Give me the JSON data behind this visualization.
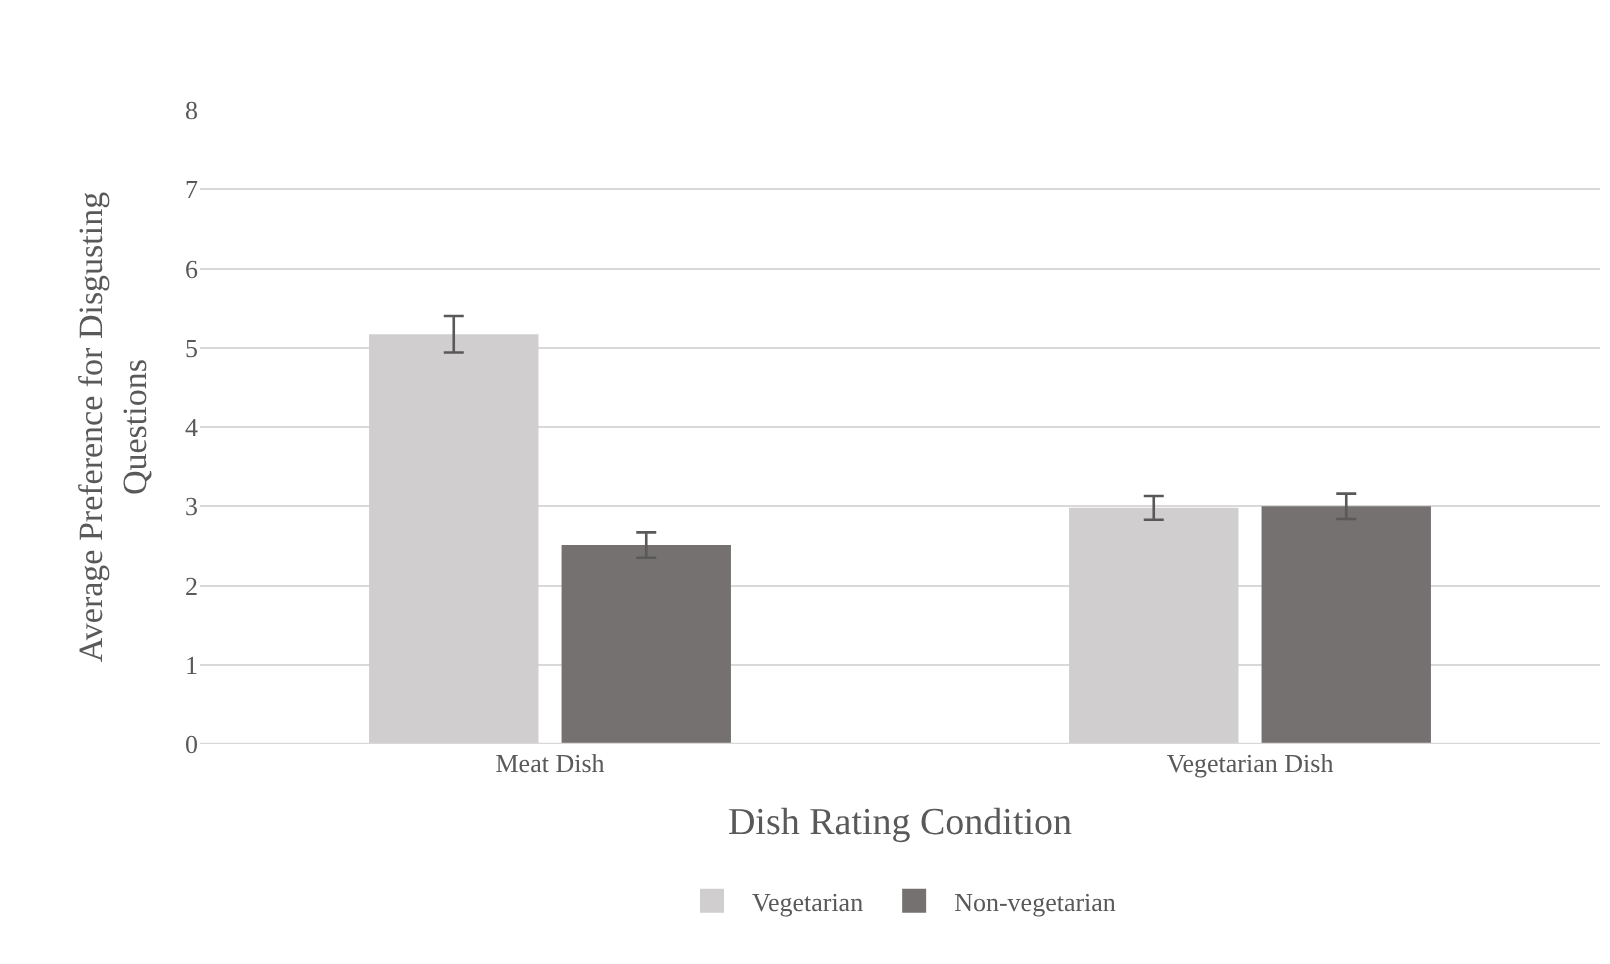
{
  "chart_data": {
    "type": "bar",
    "xlabel": "Dish Rating Condition",
    "ylabel": "Average Preference for Disgusting Questions",
    "categories": [
      "Meat Dish",
      "Vegetarian Dish"
    ],
    "series": [
      {
        "name": "Vegetarian",
        "color": "#d0cece",
        "values": [
          5.17,
          2.98
        ],
        "errors": [
          0.23,
          0.15
        ]
      },
      {
        "name": "Non-vegetarian",
        "color": "#767171",
        "values": [
          2.51,
          3.0
        ],
        "errors": [
          0.16,
          0.16
        ]
      }
    ],
    "ylim": [
      0,
      8
    ],
    "yticks": [
      0,
      1,
      2,
      3,
      4,
      5,
      6,
      7,
      8
    ],
    "grid": "y",
    "legend": "bottom"
  }
}
